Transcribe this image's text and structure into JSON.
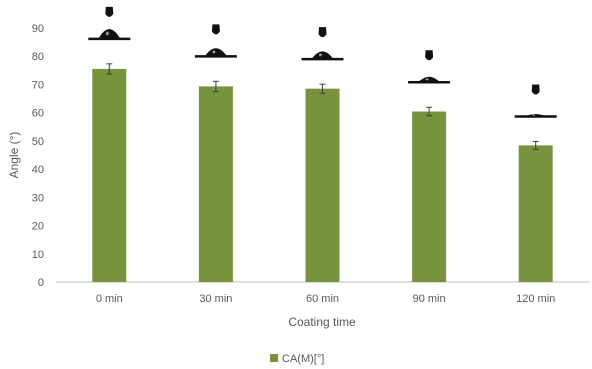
{
  "chart_data": {
    "type": "bar",
    "title": "",
    "xlabel": "Coating time",
    "ylabel": "Angle (°)",
    "categories": [
      "0 min",
      "30 min",
      "60 min",
      "90 min",
      "120 min"
    ],
    "series": [
      {
        "name": "CA(M)[°]",
        "values": [
          75.5,
          69.3,
          68.5,
          60.4,
          48.4
        ],
        "errors": [
          1.8,
          1.8,
          1.6,
          1.5,
          1.4
        ],
        "color": "#77933c"
      }
    ],
    "ylim": [
      0,
      90
    ],
    "yticks": [
      0,
      10,
      20,
      30,
      40,
      50,
      60,
      70,
      80,
      90
    ],
    "grid": false,
    "legend_position": "bottom",
    "droplet_icons": [
      "water-droplet-icon",
      "water-droplet-icon",
      "water-droplet-icon",
      "water-droplet-icon",
      "water-droplet-icon"
    ]
  }
}
